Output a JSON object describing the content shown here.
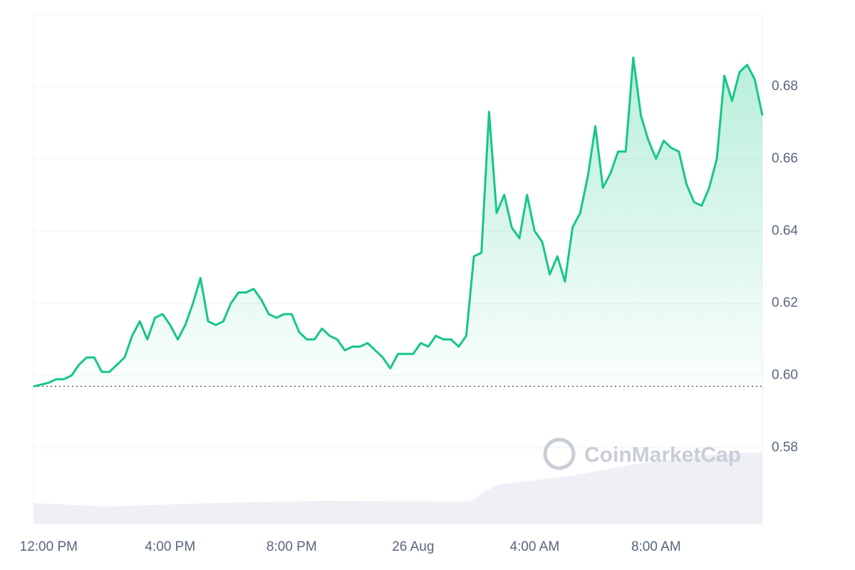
{
  "chart_data": {
    "type": "line",
    "categories": [
      null,
      null,
      "12:00 PM",
      null,
      null,
      null,
      null,
      null,
      null,
      null,
      null,
      null,
      null,
      null,
      null,
      null,
      null,
      null,
      "4:00 PM",
      null,
      null,
      null,
      null,
      null,
      null,
      null,
      null,
      null,
      null,
      null,
      null,
      null,
      null,
      null,
      "8:00 PM",
      null,
      null,
      null,
      null,
      null,
      null,
      null,
      null,
      null,
      null,
      null,
      null,
      null,
      null,
      null,
      "26 Aug",
      null,
      null,
      null,
      null,
      null,
      null,
      null,
      null,
      null,
      null,
      null,
      null,
      null,
      null,
      null,
      "4:00 AM",
      null,
      null,
      null,
      null,
      null,
      null,
      null,
      null,
      null,
      null,
      null,
      null,
      null,
      null,
      null,
      "8:00 AM",
      null,
      null,
      null,
      null,
      null,
      null,
      null,
      null,
      null,
      null,
      null,
      null,
      null,
      null
    ],
    "series": [
      {
        "color": "#16c784",
        "values": [
          0.597,
          0.5975,
          0.598,
          0.599,
          0.599,
          0.6,
          0.603,
          0.605,
          0.605,
          0.601,
          0.601,
          0.603,
          0.605,
          0.611,
          0.615,
          0.61,
          0.616,
          0.617,
          0.614,
          0.61,
          0.614,
          0.62,
          0.627,
          0.615,
          0.614,
          0.615,
          0.62,
          0.623,
          0.623,
          0.624,
          0.621,
          0.617,
          0.616,
          0.617,
          0.617,
          0.612,
          0.61,
          0.61,
          0.613,
          0.611,
          0.61,
          0.607,
          0.608,
          0.608,
          0.609,
          0.607,
          0.605,
          0.602,
          0.606,
          0.606,
          0.606,
          0.609,
          0.608,
          0.611,
          0.61,
          0.61,
          0.608,
          0.611,
          0.633,
          0.634,
          0.673,
          0.645,
          0.65,
          0.641,
          0.638,
          0.65,
          0.64,
          0.637,
          0.628,
          0.633,
          0.626,
          0.641,
          0.645,
          0.655,
          0.669,
          0.652,
          0.656,
          0.662,
          0.662,
          0.688,
          0.672,
          0.665,
          0.66,
          0.665,
          0.663,
          0.662,
          0.653,
          0.648,
          0.647,
          0.652,
          0.66,
          0.683,
          0.676,
          0.684,
          0.686,
          0.682,
          0.672
        ]
      }
    ],
    "baseline": 0.597,
    "ylim": [
      0.559,
      0.7
    ],
    "yticks": [
      {
        "value": 0.58,
        "label": "0.58"
      },
      {
        "value": 0.6,
        "label": "0.60"
      },
      {
        "value": 0.62,
        "label": "0.62"
      },
      {
        "value": 0.64,
        "label": "0.64"
      },
      {
        "value": 0.66,
        "label": "0.66"
      },
      {
        "value": 0.68,
        "label": "0.68"
      }
    ],
    "grid": true,
    "watermark": "CoinMarketCap"
  }
}
